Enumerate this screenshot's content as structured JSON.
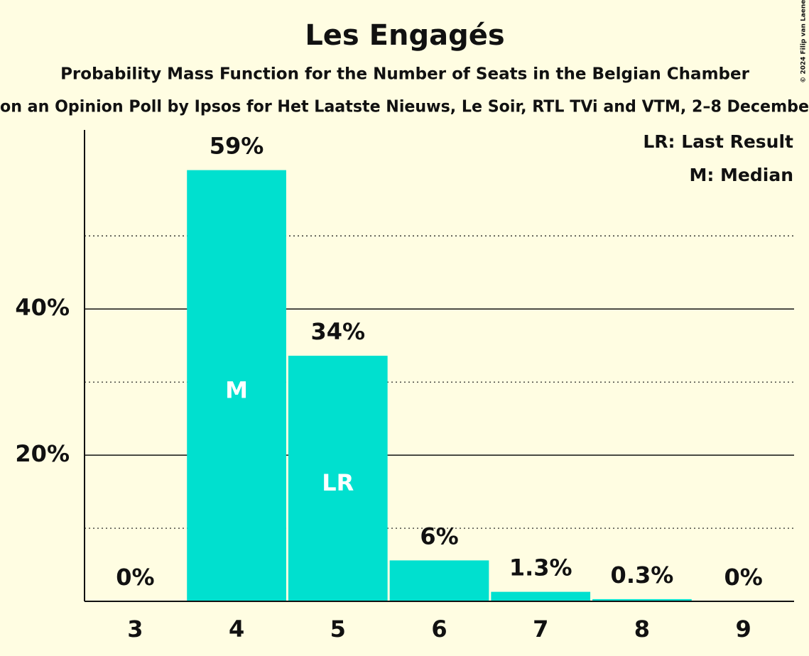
{
  "chart_data": {
    "type": "bar",
    "title": "Les Engagés",
    "subtitle": "Probability Mass Function for the Number of Seats in the Belgian Chamber",
    "subtitle2": "on an Opinion Poll by Ipsos for Het Laatste Nieuws, Le Soir, RTL TVi and VTM, 2–8 Decembe",
    "copyright": "© 2024 Filip van Laenen",
    "notes": [
      "LR: Last Result",
      "M: Median"
    ],
    "categories": [
      "3",
      "4",
      "5",
      "6",
      "7",
      "8",
      "9"
    ],
    "values": [
      0,
      59,
      33.6,
      5.6,
      1.3,
      0.3,
      0
    ],
    "value_labels": [
      "0%",
      "59%",
      "34%",
      "6%",
      "1.3%",
      "0.3%",
      "0%"
    ],
    "color": "#00e0cf",
    "annotations": [
      {
        "category": "4",
        "label": "M"
      },
      {
        "category": "5",
        "label": "LR"
      }
    ],
    "ylim": [
      0,
      64.5
    ],
    "yticks": [
      {
        "value": 20,
        "label": "20%"
      },
      {
        "value": 40,
        "label": "40%"
      }
    ],
    "minor_yticks": [
      10,
      30,
      50
    ],
    "grid": true
  }
}
